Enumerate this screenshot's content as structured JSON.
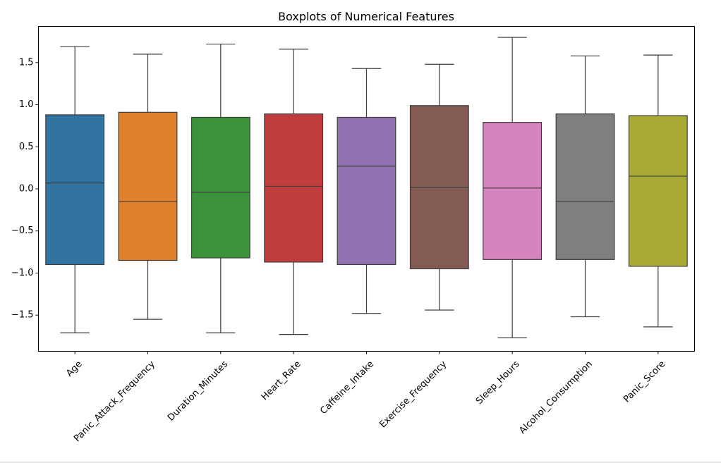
{
  "chart_data": {
    "type": "boxplot",
    "title": "Boxplots of Numerical Features",
    "xlabel": "",
    "ylabel": "",
    "ylim": [
      -1.93,
      1.93
    ],
    "yticks": [
      -1.5,
      -1.0,
      -0.5,
      0.0,
      0.5,
      1.0,
      1.5
    ],
    "ytick_labels": [
      "−1.5",
      "−1.0",
      "−0.5",
      "0.0",
      "0.5",
      "1.0",
      "1.5"
    ],
    "grid": false,
    "legend": "none",
    "categories": [
      "Age",
      "Panic_Attack_Frequency",
      "Duration_Minutes",
      "Heart_Rate",
      "Caffeine_Intake",
      "Exercise_Frequency",
      "Sleep_Hours",
      "Alcohol_Consumption",
      "Panic_Score"
    ],
    "boxes": [
      {
        "whislo": -1.71,
        "q1": -0.9,
        "median": 0.07,
        "q3": 0.88,
        "whishi": 1.69,
        "color": "#3274a1"
      },
      {
        "whislo": -1.55,
        "q1": -0.85,
        "median": -0.15,
        "q3": 0.91,
        "whishi": 1.6,
        "color": "#e1812c"
      },
      {
        "whislo": -1.71,
        "q1": -0.82,
        "median": -0.04,
        "q3": 0.85,
        "whishi": 1.72,
        "color": "#3a923a"
      },
      {
        "whislo": -1.73,
        "q1": -0.87,
        "median": 0.03,
        "q3": 0.89,
        "whishi": 1.66,
        "color": "#c03d3e"
      },
      {
        "whislo": -1.48,
        "q1": -0.9,
        "median": 0.27,
        "q3": 0.85,
        "whishi": 1.43,
        "color": "#9372b2"
      },
      {
        "whislo": -1.44,
        "q1": -0.95,
        "median": 0.02,
        "q3": 0.99,
        "whishi": 1.48,
        "color": "#845b53"
      },
      {
        "whislo": -1.77,
        "q1": -0.84,
        "median": 0.01,
        "q3": 0.79,
        "whishi": 1.8,
        "color": "#d684bd"
      },
      {
        "whislo": -1.52,
        "q1": -0.84,
        "median": -0.15,
        "q3": 0.89,
        "whishi": 1.58,
        "color": "#7f7f7f"
      },
      {
        "whislo": -1.64,
        "q1": -0.92,
        "median": 0.15,
        "q3": 0.87,
        "whishi": 1.59,
        "color": "#a9aa35"
      }
    ]
  }
}
